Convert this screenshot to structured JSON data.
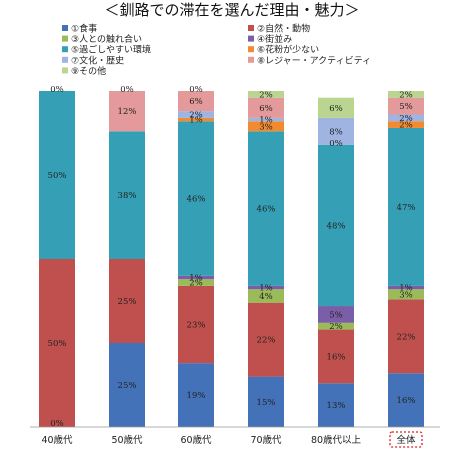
{
  "chart_data": {
    "type": "bar",
    "stacked": true,
    "title": "＜釧路での滞在を選んだ理由・魅力＞",
    "categories": [
      "40歳代",
      "50歳代",
      "60歳代",
      "70歳代",
      "80歳代以上",
      "全体"
    ],
    "highlight_category": "全体",
    "ylim": [
      0,
      100
    ],
    "grid": false,
    "legend_position": "top",
    "series": [
      {
        "name": "①食事",
        "color": "#4472b8",
        "values": [
          0,
          25,
          19,
          15,
          13,
          16
        ]
      },
      {
        "name": "②自然・動物",
        "color": "#c0504d",
        "values": [
          50,
          25,
          23,
          22,
          16,
          22
        ]
      },
      {
        "name": "③人との触れ合い",
        "color": "#9bbb59",
        "values": [
          0,
          0,
          2,
          4,
          2,
          3
        ]
      },
      {
        "name": "④街並み",
        "color": "#7b5ea8",
        "values": [
          0,
          0,
          1,
          1,
          5,
          1
        ]
      },
      {
        "name": "⑤過ごしやすい環境",
        "color": "#35a0b5",
        "values": [
          50,
          38,
          46,
          46,
          48,
          47
        ]
      },
      {
        "name": "⑥花粉が少ない",
        "color": "#f28b30",
        "values": [
          0,
          0,
          1,
          3,
          0,
          2
        ]
      },
      {
        "name": "⑦文化・歴史",
        "color": "#9fb4e0",
        "values": [
          0,
          0,
          2,
          1,
          8,
          2
        ]
      },
      {
        "name": "⑧レジャー・アクティビティ",
        "color": "#e49a9a",
        "values": [
          0,
          12,
          6,
          6,
          0,
          5
        ]
      },
      {
        "name": "⑨その他",
        "color": "#b9d590",
        "values": [
          0,
          0,
          0,
          2,
          6,
          2
        ]
      }
    ]
  }
}
